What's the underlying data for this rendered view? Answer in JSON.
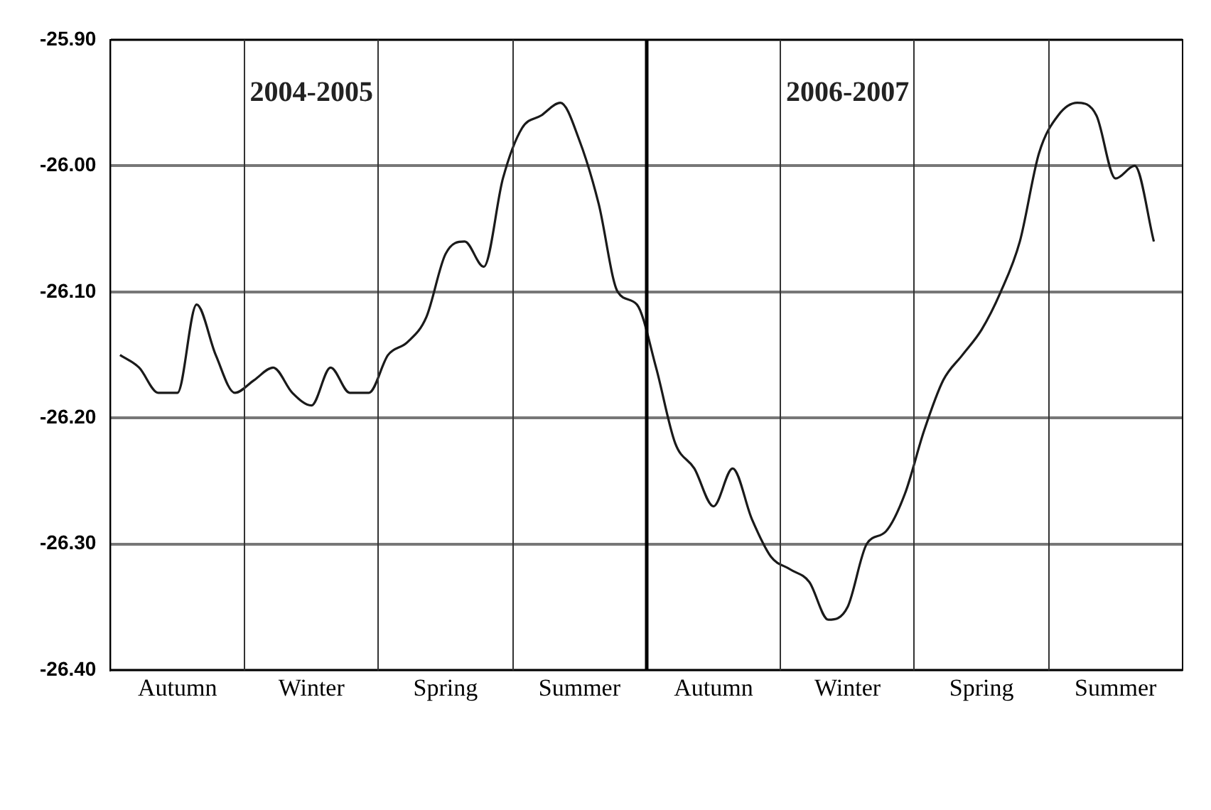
{
  "chart_data": {
    "type": "line",
    "categories": [
      null,
      null,
      null,
      "Autumn",
      null,
      null,
      null,
      null,
      null,
      null,
      "Winter",
      null,
      null,
      null,
      null,
      null,
      null,
      "Spring",
      null,
      null,
      null,
      null,
      null,
      null,
      "Summer",
      null,
      null,
      null,
      null,
      null,
      null,
      "Autumn",
      null,
      null,
      null,
      null,
      null,
      null,
      "Winter",
      null,
      null,
      null,
      null,
      null,
      null,
      "Spring",
      null,
      null,
      null,
      null,
      null,
      null,
      "Summer",
      null,
      null,
      null
    ],
    "series": [
      {
        "color": "#1a1a1a",
        "values": [
          -26.15,
          -26.16,
          -26.18,
          -26.18,
          -26.11,
          -26.15,
          -26.18,
          -26.17,
          -26.16,
          -26.18,
          -26.19,
          -26.16,
          -26.18,
          -26.18,
          -26.15,
          -26.14,
          -26.12,
          -26.07,
          -26.06,
          -26.08,
          -26.01,
          -25.97,
          -25.96,
          -25.95,
          -25.98,
          -26.03,
          -26.1,
          -26.11,
          -26.16,
          -26.22,
          -26.24,
          -26.27,
          -26.24,
          -26.28,
          -26.31,
          -26.32,
          -26.33,
          -26.36,
          -26.35,
          -26.3,
          -26.29,
          -26.26,
          -26.21,
          -26.17,
          -26.15,
          -26.13,
          -26.1,
          -26.06,
          -25.99,
          -25.96,
          -25.95,
          -25.96,
          -26.01,
          -26.0,
          -26.06,
          null
        ]
      }
    ],
    "ylim": [
      -26.4,
      -25.9
    ],
    "yticks": [
      {
        "value": -26.4,
        "label": "-26.40"
      },
      {
        "value": -26.3,
        "label": "-26.30"
      },
      {
        "value": -26.2,
        "label": "-26.20"
      },
      {
        "value": -26.1,
        "label": "-26.10"
      },
      {
        "value": -26.0,
        "label": "-26.00"
      },
      {
        "value": -25.9,
        "label": "-25.90"
      }
    ],
    "grid": "y",
    "marker": "none",
    "line_style": "solid",
    "annotations": [
      "2004-2005",
      "2006-2007"
    ]
  }
}
